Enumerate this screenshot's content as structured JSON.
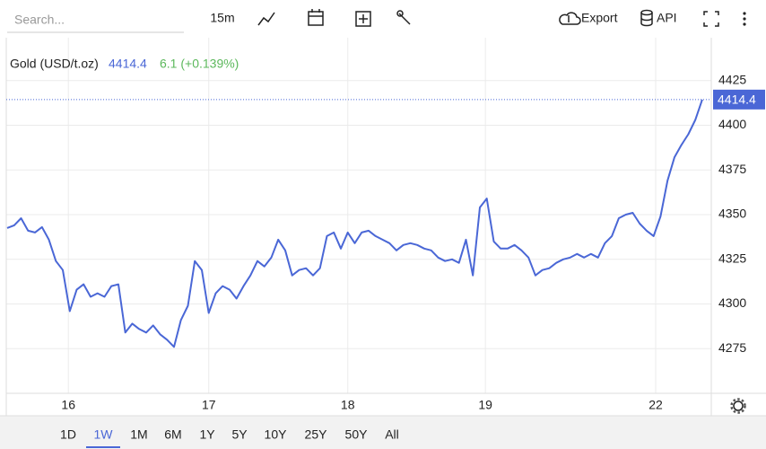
{
  "toolbar": {
    "search_placeholder": "Search...",
    "interval": "15m",
    "export": "Export",
    "api": "API"
  },
  "chart_data": {
    "type": "line",
    "title": "Gold (USD/t.oz)",
    "change_label": "6.1 (+0.139%)",
    "series": [
      {
        "name": "Gold (USD/t.oz)",
        "color": "#4a67d6",
        "values": [
          4342.5,
          4344,
          4348,
          4341,
          4340,
          4343,
          4336,
          4324,
          4319,
          4296,
          4308,
          4311,
          4304,
          4306,
          4304,
          4310,
          4311,
          4284,
          4289,
          4286,
          4284,
          4288,
          4283,
          4280,
          4276,
          4291,
          4299,
          4324,
          4319,
          4295,
          4306,
          4310,
          4308,
          4303,
          4310,
          4316,
          4324,
          4321,
          4326,
          4336,
          4330,
          4316,
          4319,
          4320,
          4316,
          4320,
          4338,
          4340,
          4331,
          4340,
          4334,
          4340,
          4341,
          4338,
          4336,
          4334,
          4330,
          4333,
          4334,
          4333,
          4331,
          4330,
          4326,
          4324,
          4325,
          4323,
          4336,
          4316,
          4354,
          4359,
          4335,
          4331,
          4331,
          4333,
          4330,
          4326,
          4316,
          4319,
          4320,
          4323,
          4325,
          4326,
          4328,
          4326,
          4328,
          4326,
          4334,
          4338,
          4348,
          4350,
          4351,
          4345,
          4341,
          4338,
          4349,
          4369,
          4382,
          4389,
          4395,
          4403,
          4414.4
        ]
      }
    ],
    "xlim": [
      -0.13,
      101.3
    ],
    "xticks": [
      {
        "value": 8.8,
        "label": "16"
      },
      {
        "value": 29.0,
        "label": "17"
      },
      {
        "value": 49.0,
        "label": "18"
      },
      {
        "value": 68.8,
        "label": "19"
      },
      {
        "value": 93.3,
        "label": "22"
      }
    ],
    "ylim": [
      4250,
      4449
    ],
    "yticks": [
      4275,
      4300,
      4325,
      4350,
      4375,
      4400,
      4425
    ],
    "grid": true,
    "range_buttons": [
      "1D",
      "1W",
      "1M",
      "6M",
      "1Y",
      "5Y",
      "10Y",
      "25Y",
      "50Y",
      "All"
    ],
    "active_range": "1W"
  }
}
